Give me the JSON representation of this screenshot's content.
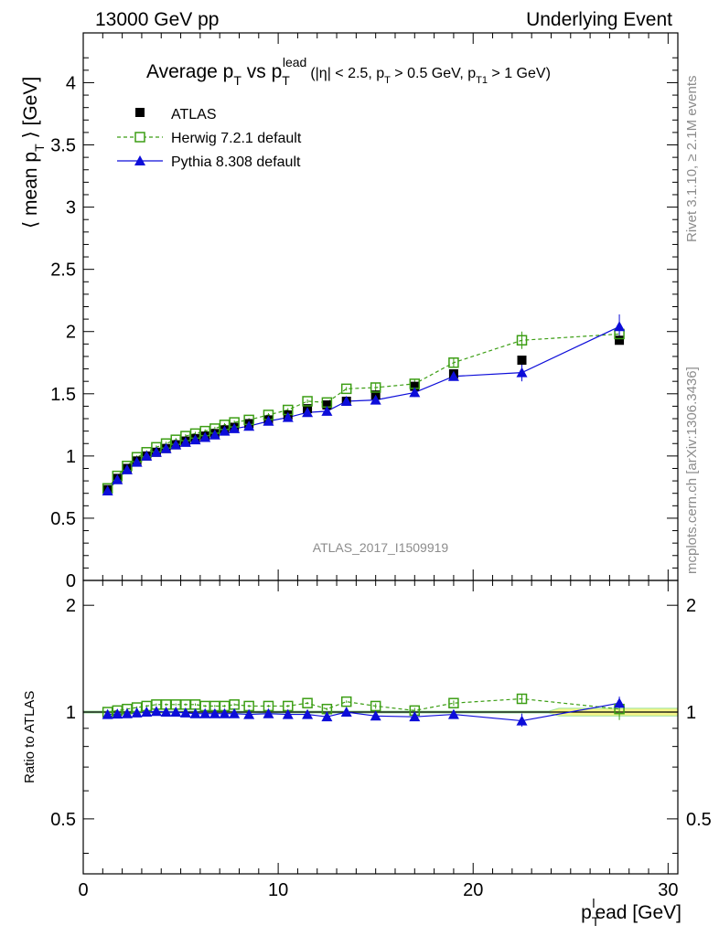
{
  "header": {
    "left": "13000 GeV pp",
    "right": "Underlying Event"
  },
  "side": {
    "rivet": "Rivet 3.1.10, ≥ 2.1M events",
    "mcplots": "mcplots.cern.ch [arXiv:1306.3436]"
  },
  "watermark": "ATLAS_2017_I1509919",
  "title": {
    "main_a": "Average p",
    "main_sub1": "T",
    "main_b": " vs p",
    "main_sub2": "T",
    "main_sup2": "lead",
    "cuts_a": "(|η| < 2.5, p",
    "cuts_sub1": "T",
    "cuts_b": " > 0.5 GeV, p",
    "cuts_sub2": "T1",
    "cuts_c": " > 1 GeV)"
  },
  "axes": {
    "ylabel_top_a": "⟨ mean p",
    "ylabel_top_sub": "T",
    "ylabel_top_b": " ⟩ [GeV]",
    "ylabel_bottom": "Ratio to ATLAS",
    "xlabel_a": "p",
    "xlabel_sub": "T",
    "xlabel_sup": "l",
    "xlabel_b": "ead [GeV]"
  },
  "legend": {
    "atlas": "ATLAS",
    "herwig": "Herwig 7.2.1 default",
    "pythia": "Pythia 8.308 default"
  },
  "colors": {
    "atlas": "#000000",
    "herwig": "#3c9e14",
    "pythia": "#0d0dd9",
    "band": "#f5f58a",
    "band_edge": "#9be29b"
  },
  "chart_data": [
    {
      "type": "scatter",
      "panel": "main",
      "xlim": [
        0,
        30.5
      ],
      "ylim": [
        0,
        4.4
      ],
      "yticks": [
        0,
        0.5,
        1,
        1.5,
        2,
        2.5,
        3,
        3.5,
        4
      ],
      "xticks": [
        0,
        10,
        20,
        30
      ],
      "ylabel": "⟨ mean pT ⟩ [GeV]",
      "x": [
        1.25,
        1.75,
        2.25,
        2.75,
        3.25,
        3.75,
        4.25,
        4.75,
        5.25,
        5.75,
        6.25,
        6.75,
        7.25,
        7.75,
        8.5,
        9.5,
        10.5,
        11.5,
        12.5,
        13.5,
        15.0,
        17.0,
        19.0,
        22.5,
        27.5
      ],
      "series": [
        {
          "name": "ATLAS",
          "values": [
            0.73,
            0.82,
            0.9,
            0.96,
            1.0,
            1.03,
            1.06,
            1.09,
            1.12,
            1.14,
            1.16,
            1.18,
            1.21,
            1.23,
            1.26,
            1.29,
            1.33,
            1.38,
            1.41,
            1.44,
            1.49,
            1.56,
            1.66,
            1.77,
            1.93
          ]
        },
        {
          "name": "Herwig 7.2.1 default",
          "values": [
            0.74,
            0.84,
            0.92,
            0.99,
            1.03,
            1.07,
            1.1,
            1.13,
            1.16,
            1.18,
            1.2,
            1.22,
            1.25,
            1.27,
            1.29,
            1.33,
            1.37,
            1.44,
            1.43,
            1.54,
            1.55,
            1.58,
            1.75,
            1.93,
            1.98
          ]
        },
        {
          "name": "Pythia 8.308 default",
          "values": [
            0.72,
            0.81,
            0.89,
            0.95,
            1.0,
            1.03,
            1.06,
            1.09,
            1.11,
            1.13,
            1.15,
            1.17,
            1.2,
            1.22,
            1.24,
            1.28,
            1.31,
            1.35,
            1.36,
            1.44,
            1.45,
            1.51,
            1.64,
            1.67,
            2.04
          ]
        }
      ]
    },
    {
      "type": "scatter",
      "panel": "ratio",
      "xlim": [
        0,
        30.5
      ],
      "ylim": [
        0.35,
        2.35
      ],
      "yticks": [
        0.5,
        1,
        2
      ],
      "xticks": [
        0,
        10,
        20,
        30
      ],
      "ylabel": "Ratio to ATLAS",
      "xlabel": "pTlead [GeV]",
      "x": [
        1.25,
        1.75,
        2.25,
        2.75,
        3.25,
        3.75,
        4.25,
        4.75,
        5.25,
        5.75,
        6.25,
        6.75,
        7.25,
        7.75,
        8.5,
        9.5,
        10.5,
        11.5,
        12.5,
        13.5,
        15.0,
        17.0,
        19.0,
        22.5,
        27.5
      ],
      "series": [
        {
          "name": "Herwig 7.2.1 default",
          "values": [
            1.0,
            1.01,
            1.02,
            1.03,
            1.04,
            1.05,
            1.05,
            1.05,
            1.05,
            1.05,
            1.04,
            1.04,
            1.04,
            1.05,
            1.04,
            1.04,
            1.04,
            1.06,
            1.02,
            1.07,
            1.04,
            1.01,
            1.06,
            1.09,
            1.02
          ]
        },
        {
          "name": "Pythia 8.308 default",
          "values": [
            0.985,
            0.988,
            0.99,
            0.995,
            1.0,
            1.005,
            1.0,
            1.0,
            0.995,
            0.99,
            0.99,
            0.99,
            0.99,
            0.99,
            0.985,
            0.99,
            0.985,
            0.985,
            0.97,
            1.0,
            0.975,
            0.97,
            0.985,
            0.945,
            1.06
          ]
        }
      ]
    }
  ]
}
